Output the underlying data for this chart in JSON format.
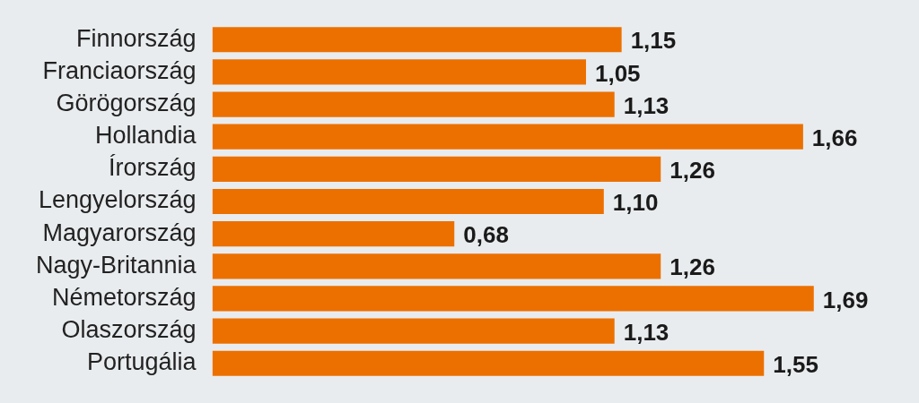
{
  "chart_data": {
    "type": "bar",
    "orientation": "horizontal",
    "categories": [
      "Finnország",
      "Franciaország",
      "Görögország",
      "Hollandia",
      "Írország",
      "Lengyelország",
      "Magyarország",
      "Nagy-Britannia",
      "Németország",
      "Olaszország",
      "Portugália"
    ],
    "values": [
      1.15,
      1.05,
      1.13,
      1.66,
      1.26,
      1.1,
      0.68,
      1.26,
      1.69,
      1.13,
      1.55
    ],
    "value_labels": [
      "1,15",
      "1,05",
      "1,13",
      "1,66",
      "1,26",
      "1,10",
      "0,68",
      "1,26",
      "1,69",
      "1,13",
      "1,55"
    ],
    "color": "#ec7000"
  }
}
